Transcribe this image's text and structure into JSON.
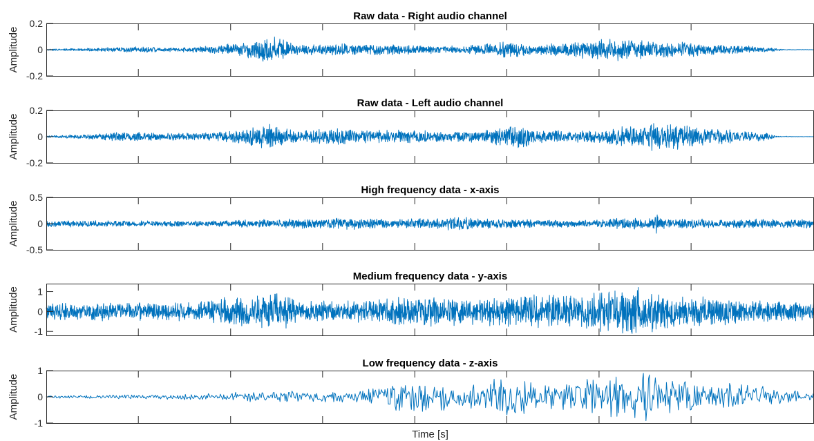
{
  "chart_data": [
    {
      "type": "line",
      "title": "Raw data - Right audio channel",
      "xlabel": "",
      "ylabel": "Amplitude",
      "ylim": [
        -0.2,
        0.2
      ],
      "yticks": [
        -0.2,
        0,
        0.2
      ],
      "ytick_labels": [
        "-0.2",
        "0",
        "0.2"
      ],
      "color": "#0072BD",
      "envelope": [
        {
          "x": 0.0,
          "y": 0.006
        },
        {
          "x": 0.06,
          "y": 0.012
        },
        {
          "x": 0.12,
          "y": 0.025
        },
        {
          "x": 0.17,
          "y": 0.015
        },
        {
          "x": 0.21,
          "y": 0.03
        },
        {
          "x": 0.26,
          "y": 0.06
        },
        {
          "x": 0.29,
          "y": 0.12
        },
        {
          "x": 0.33,
          "y": 0.04
        },
        {
          "x": 0.36,
          "y": 0.045
        },
        {
          "x": 0.39,
          "y": 0.055
        },
        {
          "x": 0.43,
          "y": 0.04
        },
        {
          "x": 0.46,
          "y": 0.05
        },
        {
          "x": 0.52,
          "y": 0.03
        },
        {
          "x": 0.56,
          "y": 0.04
        },
        {
          "x": 0.6,
          "y": 0.07
        },
        {
          "x": 0.64,
          "y": 0.04
        },
        {
          "x": 0.68,
          "y": 0.06
        },
        {
          "x": 0.73,
          "y": 0.09
        },
        {
          "x": 0.79,
          "y": 0.07
        },
        {
          "x": 0.84,
          "y": 0.06
        },
        {
          "x": 0.88,
          "y": 0.04
        },
        {
          "x": 0.92,
          "y": 0.03
        },
        {
          "x": 0.95,
          "y": 0.015
        },
        {
          "x": 0.96,
          "y": 0.003
        },
        {
          "x": 1.0,
          "y": 0.001
        }
      ]
    },
    {
      "type": "line",
      "title": "Raw data - Left audio channel",
      "xlabel": "",
      "ylabel": "Amplitude",
      "ylim": [
        -0.2,
        0.2
      ],
      "yticks": [
        -0.2,
        0,
        0.2
      ],
      "ytick_labels": [
        "-0.2",
        "0",
        "0.2"
      ],
      "color": "#0072BD",
      "envelope": [
        {
          "x": 0.0,
          "y": 0.008
        },
        {
          "x": 0.05,
          "y": 0.02
        },
        {
          "x": 0.1,
          "y": 0.04
        },
        {
          "x": 0.15,
          "y": 0.03
        },
        {
          "x": 0.2,
          "y": 0.03
        },
        {
          "x": 0.24,
          "y": 0.05
        },
        {
          "x": 0.29,
          "y": 0.1
        },
        {
          "x": 0.33,
          "y": 0.04
        },
        {
          "x": 0.37,
          "y": 0.08
        },
        {
          "x": 0.41,
          "y": 0.05
        },
        {
          "x": 0.46,
          "y": 0.06
        },
        {
          "x": 0.52,
          "y": 0.04
        },
        {
          "x": 0.57,
          "y": 0.05
        },
        {
          "x": 0.61,
          "y": 0.1
        },
        {
          "x": 0.65,
          "y": 0.05
        },
        {
          "x": 0.7,
          "y": 0.05
        },
        {
          "x": 0.74,
          "y": 0.07
        },
        {
          "x": 0.8,
          "y": 0.12
        },
        {
          "x": 0.85,
          "y": 0.08
        },
        {
          "x": 0.9,
          "y": 0.05
        },
        {
          "x": 0.94,
          "y": 0.03
        },
        {
          "x": 0.95,
          "y": 0.005
        },
        {
          "x": 1.0,
          "y": 0.001
        }
      ]
    },
    {
      "type": "line",
      "title": "High frequency data - x-axis",
      "xlabel": "",
      "ylabel": "Amplitude",
      "ylim": [
        -0.5,
        0.5
      ],
      "yticks": [
        -0.5,
        0,
        0.5
      ],
      "ytick_labels": [
        "-0.5",
        "0",
        "0.5"
      ],
      "color": "#0072BD",
      "envelope": [
        {
          "x": 0.0,
          "y": 0.07
        },
        {
          "x": 0.1,
          "y": 0.06
        },
        {
          "x": 0.2,
          "y": 0.06
        },
        {
          "x": 0.3,
          "y": 0.09
        },
        {
          "x": 0.4,
          "y": 0.12
        },
        {
          "x": 0.45,
          "y": 0.08
        },
        {
          "x": 0.5,
          "y": 0.12
        },
        {
          "x": 0.55,
          "y": 0.13
        },
        {
          "x": 0.6,
          "y": 0.09
        },
        {
          "x": 0.7,
          "y": 0.07
        },
        {
          "x": 0.76,
          "y": 0.12
        },
        {
          "x": 0.8,
          "y": 0.1
        },
        {
          "x": 0.9,
          "y": 0.09
        },
        {
          "x": 1.0,
          "y": 0.09
        }
      ],
      "spikes": [
        {
          "x": 0.795,
          "y": 0.35
        }
      ]
    },
    {
      "type": "line",
      "title": "Medium frequency data - y-axis",
      "xlabel": "",
      "ylabel": "Amplitude",
      "ylim": [
        -1.2,
        1.4
      ],
      "yticks": [
        -1,
        0,
        1
      ],
      "ytick_labels": [
        "-1",
        "0",
        "1"
      ],
      "color": "#0072BD",
      "envelope": [
        {
          "x": 0.0,
          "y": 0.45
        },
        {
          "x": 0.1,
          "y": 0.5
        },
        {
          "x": 0.2,
          "y": 0.5
        },
        {
          "x": 0.25,
          "y": 0.85
        },
        {
          "x": 0.28,
          "y": 0.9
        },
        {
          "x": 0.31,
          "y": 1.0
        },
        {
          "x": 0.33,
          "y": 0.5
        },
        {
          "x": 0.4,
          "y": 0.6
        },
        {
          "x": 0.45,
          "y": 0.75
        },
        {
          "x": 0.5,
          "y": 0.8
        },
        {
          "x": 0.56,
          "y": 0.7
        },
        {
          "x": 0.62,
          "y": 0.85
        },
        {
          "x": 0.7,
          "y": 0.9
        },
        {
          "x": 0.74,
          "y": 1.2
        },
        {
          "x": 0.77,
          "y": 1.25
        },
        {
          "x": 0.82,
          "y": 0.85
        },
        {
          "x": 0.9,
          "y": 0.65
        },
        {
          "x": 1.0,
          "y": 0.5
        }
      ]
    },
    {
      "type": "line",
      "title": "Low frequency data - z-axis",
      "xlabel": "Time [s]",
      "ylabel": "Amplitude",
      "ylim": [
        -1,
        1
      ],
      "yticks": [
        -1,
        0,
        1
      ],
      "ytick_labels": [
        "-1",
        "0",
        "1"
      ],
      "color": "#0072BD",
      "envelope": [
        {
          "x": 0.0,
          "y": 0.05
        },
        {
          "x": 0.1,
          "y": 0.08
        },
        {
          "x": 0.2,
          "y": 0.12
        },
        {
          "x": 0.3,
          "y": 0.25
        },
        {
          "x": 0.4,
          "y": 0.2
        },
        {
          "x": 0.47,
          "y": 0.7
        },
        {
          "x": 0.55,
          "y": 0.45
        },
        {
          "x": 0.6,
          "y": 0.85
        },
        {
          "x": 0.65,
          "y": 0.5
        },
        {
          "x": 0.7,
          "y": 0.8
        },
        {
          "x": 0.74,
          "y": 0.9
        },
        {
          "x": 0.78,
          "y": 0.95
        },
        {
          "x": 0.85,
          "y": 0.55
        },
        {
          "x": 0.92,
          "y": 0.5
        },
        {
          "x": 1.0,
          "y": 0.12
        }
      ]
    }
  ],
  "xgrid_fractions": [
    0.1199,
    0.2401,
    0.3599,
    0.48,
    0.5999,
    0.72,
    0.8399
  ]
}
